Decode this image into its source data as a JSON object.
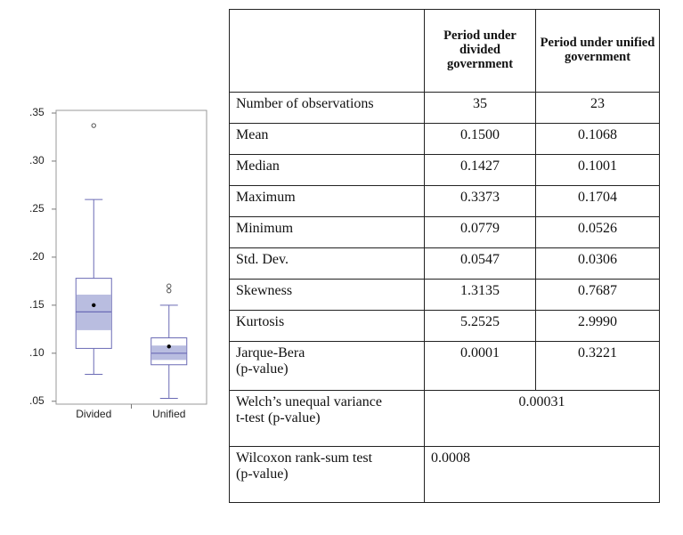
{
  "chart_data": {
    "type": "boxplot",
    "categories": [
      "Divided",
      "Unified"
    ],
    "ylim": [
      0.047,
      0.35
    ],
    "yticks": [
      {
        "value": 0.05,
        "label": ".05"
      },
      {
        "value": 0.1,
        "label": ".10"
      },
      {
        "value": 0.15,
        "label": ".15"
      },
      {
        "value": 0.2,
        "label": ".20"
      },
      {
        "value": 0.25,
        "label": ".25"
      },
      {
        "value": 0.3,
        "label": ".30"
      },
      {
        "value": 0.35,
        "label": ".35"
      }
    ],
    "color": "#6b6bb5",
    "shade_color": "#b9bde0",
    "boxes": [
      {
        "whisker_low": 0.078,
        "q1": 0.105,
        "median": 0.143,
        "q3": 0.178,
        "whisker_high": 0.26,
        "mean": 0.15,
        "ci": [
          0.124,
          0.161
        ],
        "outliers": [
          0.337
        ]
      },
      {
        "whisker_low": 0.053,
        "q1": 0.088,
        "median": 0.1,
        "q3": 0.116,
        "whisker_high": 0.15,
        "mean": 0.107,
        "ci": [
          0.093,
          0.108
        ],
        "outliers": [
          0.165,
          0.17
        ]
      }
    ]
  },
  "table": {
    "columns": [
      "Period under divided government",
      "Period under unified government"
    ],
    "rows": [
      [
        "Number of observations",
        "35",
        "23"
      ],
      [
        "Mean",
        "0.1500",
        "0.1068"
      ],
      [
        "Median",
        "0.1427",
        "0.1001"
      ],
      [
        "Maximum",
        "0.3373",
        "0.1704"
      ],
      [
        "Minimum",
        "0.0779",
        "0.0526"
      ],
      [
        "Std. Dev.",
        "0.0547",
        "0.0306"
      ],
      [
        "Skewness",
        "1.3135",
        "0.7687"
      ],
      [
        "Kurtosis",
        "5.2525",
        "2.9990"
      ],
      [
        "Jarque-Bera\n(p-value)",
        "0.0001",
        "0.3221"
      ],
      [
        "Welch’s unequal variance\nt-test (p-value)",
        "0.00031"
      ],
      [
        "Wilcoxon rank-sum test\n(p-value)",
        "0.0008"
      ]
    ]
  }
}
